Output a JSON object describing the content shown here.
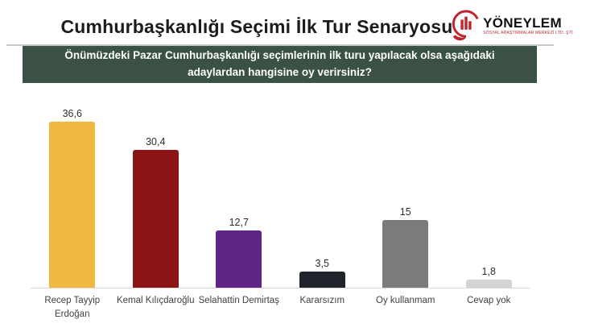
{
  "header": {
    "title": "Cumhurbaşkanlığı Seçimi İlk Tur Senaryosu",
    "logo": {
      "name": "YÖNEYLEM",
      "subtitle": "SOSYAL ARAŞTIRMALAR MERKEZİ LTD. ŞTİ.",
      "icon": "hand-holding-bar-chart-icon",
      "color": "#c0272d"
    }
  },
  "question_banner": {
    "text": "Önümüzdeki Pazar Cumhurbaşkanlığı seçimlerinin ilk turu yapılacak olsa aşağıdaki adaylardan hangisine oy verirsiniz?",
    "background": "#3a5144",
    "text_color": "#ffffff"
  },
  "chart_data": {
    "type": "bar",
    "title": "",
    "xlabel": "",
    "ylabel": "",
    "categories": [
      "Recep Tayyip Erdoğan",
      "Kemal Kılıçdaroğlu",
      "Selahattin Demirtaş",
      "Kararsızım",
      "Oy kullanmam",
      "Cevap yok"
    ],
    "values": [
      36.6,
      30.4,
      12.7,
      3.5,
      15,
      1.8
    ],
    "value_labels": [
      "36,6",
      "30,4",
      "12,7",
      "3,5",
      "15",
      "1,8"
    ],
    "bar_colors": [
      "#efb840",
      "#8b1415",
      "#5e2486",
      "#1f232b",
      "#7b7b7b",
      "#d4d4d4"
    ],
    "ylim": [
      0,
      40
    ],
    "grid": false,
    "legend": false,
    "baseline_color": "#d9d9d9"
  }
}
